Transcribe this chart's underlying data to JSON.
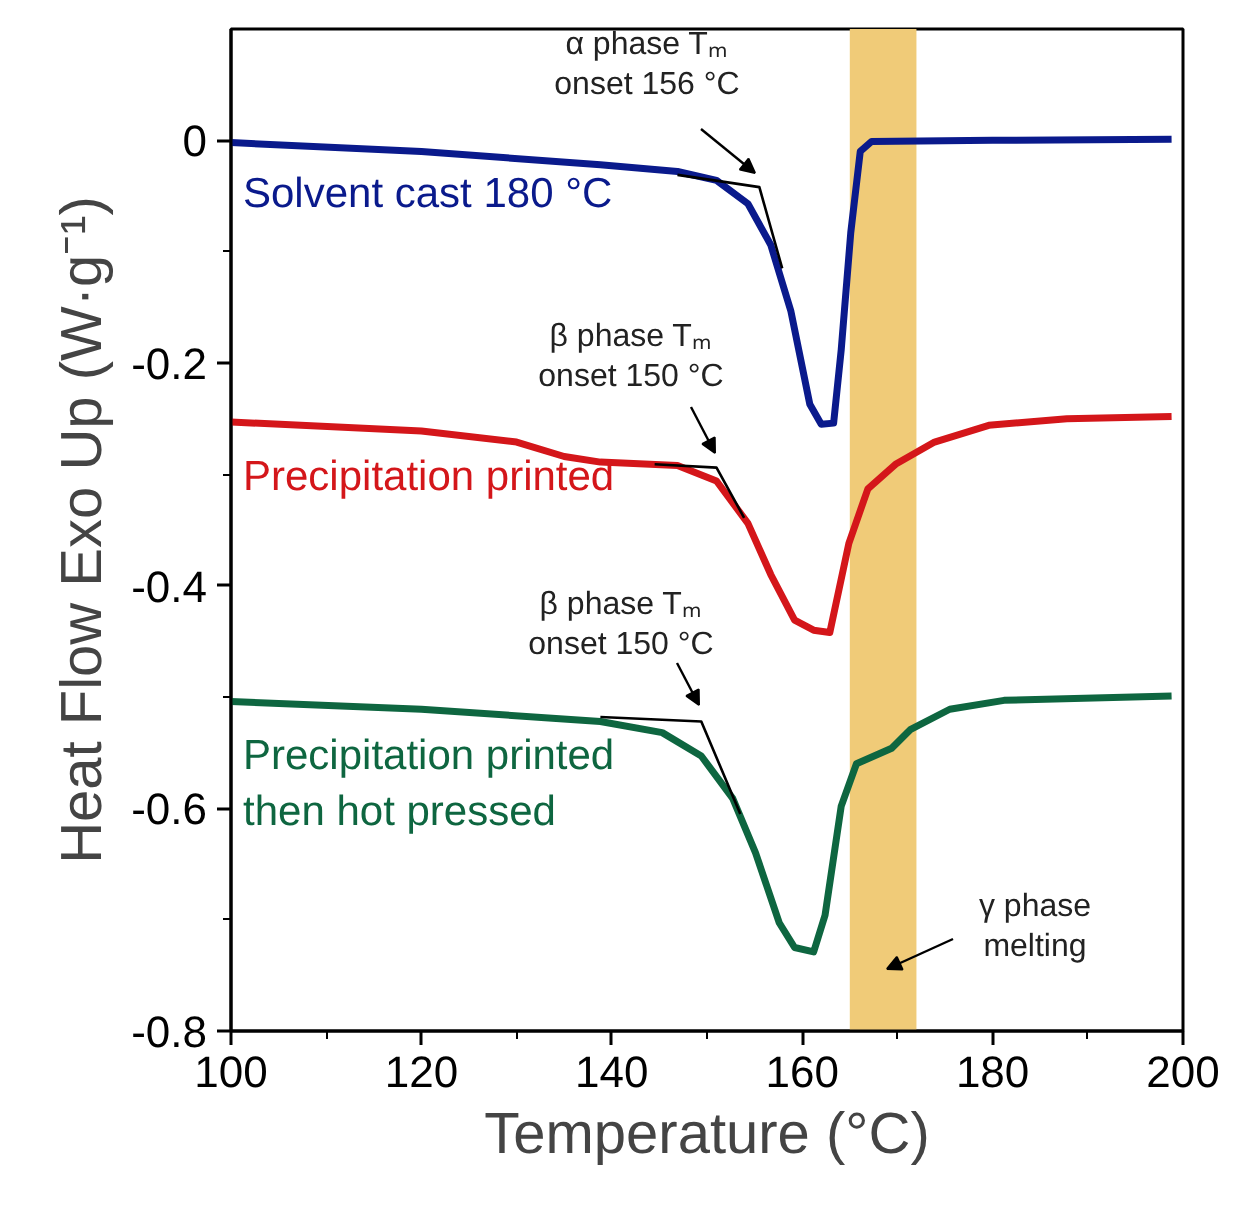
{
  "chart_data": {
    "type": "line",
    "xlabel": "Temperature (°C)",
    "ylabel": "Heat Flow Exo Up (W·g⁻¹)",
    "xlim": [
      100,
      200
    ],
    "xticks": [
      100,
      120,
      140,
      160,
      180,
      200
    ],
    "ylim": [
      -0.8,
      0.1
    ],
    "yticks": [
      {
        "value": -0.8,
        "label": "-0.8"
      },
      {
        "value": -0.6,
        "label": "-0.6"
      },
      {
        "value": -0.4,
        "label": "-0.4"
      },
      {
        "value": -0.2,
        "label": "-0.2"
      },
      0
    ],
    "grid": false,
    "series": [
      {
        "name": "Solvent cast 180 °C",
        "color": "#0a1a8c",
        "x": [
          100,
          120,
          138.8,
          146.9,
          151,
          154.3,
          156.7,
          158.8,
          160.8,
          162,
          163.3,
          164.1,
          165.1,
          166.1,
          167.3,
          180,
          198.8
        ],
        "values": [
          -0.002,
          -0.01,
          -0.022,
          -0.028,
          -0.036,
          -0.057,
          -0.094,
          -0.153,
          -0.237,
          -0.255,
          -0.254,
          -0.188,
          -0.083,
          -0.01,
          -0.001,
          0,
          0.001
        ]
      },
      {
        "name": "Precipitation printed",
        "color": "#d4161a",
        "x": [
          100,
          120,
          130,
          135,
          138.8,
          146.9,
          151,
          154.3,
          156.7,
          159.2,
          161.2,
          162.9,
          164.9,
          166.9,
          169.8,
          173.9,
          179.6,
          187.8,
          198.8
        ],
        "values": [
          -0.253,
          -0.261,
          -0.271,
          -0.284,
          -0.289,
          -0.292,
          -0.306,
          -0.344,
          -0.39,
          -0.431,
          -0.44,
          -0.442,
          -0.362,
          -0.313,
          -0.291,
          -0.271,
          -0.256,
          -0.25,
          -0.248
        ]
      },
      {
        "name": "Precipitation printed\nthen hot pressed",
        "color": "#0e6640",
        "x": [
          100,
          120,
          138.8,
          145.3,
          149.4,
          152.7,
          155.1,
          157.6,
          159.2,
          161.2,
          162.4,
          164.1,
          165.7,
          169.4,
          171.4,
          175.5,
          181.2,
          198.8
        ],
        "values": [
          -0.504,
          -0.511,
          -0.522,
          -0.532,
          -0.553,
          -0.591,
          -0.64,
          -0.703,
          -0.725,
          -0.729,
          -0.696,
          -0.598,
          -0.56,
          -0.546,
          -0.529,
          -0.511,
          -0.503,
          -0.499
        ]
      },
      {
        "color": "#000000",
        "x": [
          146.9,
          155.5,
          157.9
        ],
        "values": [
          -0.031,
          -0.042,
          -0.115
        ]
      },
      {
        "color": "#000000",
        "x": [
          144.5,
          151,
          153.9
        ],
        "values": [
          -0.291,
          -0.294,
          -0.339
        ]
      },
      {
        "color": "#000000",
        "x": [
          138.8,
          149.4,
          153.5
        ],
        "values": [
          -0.518,
          -0.522,
          -0.605
        ]
      }
    ],
    "bands": [
      {
        "axis": "x",
        "from": 165,
        "to": 172,
        "color": "#f0cb78"
      }
    ],
    "annotations": [
      "α phase Tₘ\nonset 156 °C",
      "β phase Tₘ\nonset 150 °C",
      "β phase Tₘ\nonset 150 °C",
      "γ phase\nmelting"
    ]
  }
}
